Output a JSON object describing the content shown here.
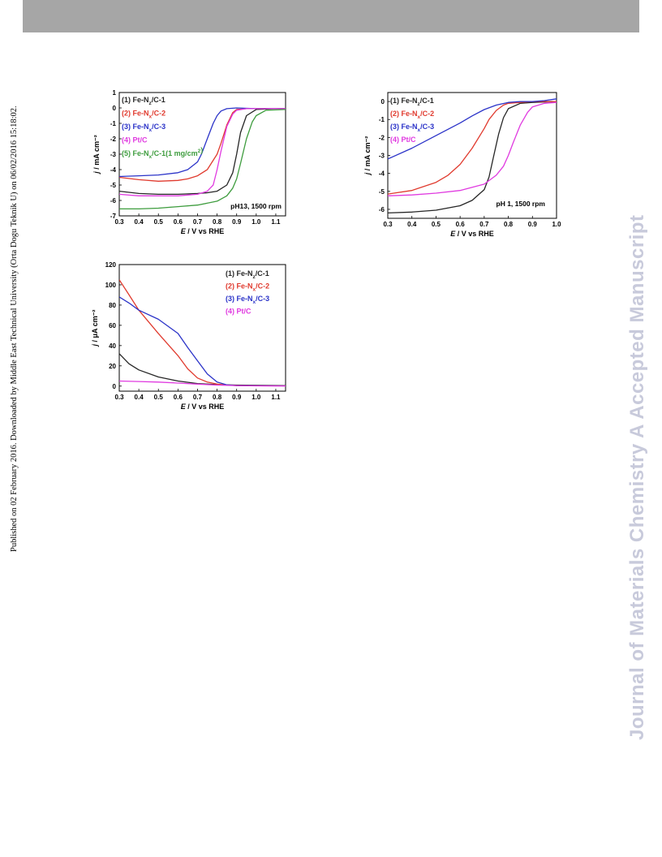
{
  "page": {
    "side_note": "Published on 02 February 2016. Downloaded by Middle East Technical University (Orta Dogu Teknik U) on 06/02/2016 15:18:02.",
    "journal_mark": "Journal of Materials Chemistry A Accepted Manuscript"
  },
  "chart_data": [
    {
      "type": "line",
      "xlabel": "E / V vs RHE",
      "ylabel": "j / mA cm⁻²",
      "xlim": [
        0.3,
        1.15
      ],
      "ylim": [
        -7,
        1
      ],
      "xticks": [
        "0.3",
        "0.4",
        "0.5",
        "0.6",
        "0.7",
        "0.8",
        "0.9",
        "1.0",
        "1.1"
      ],
      "yticks": [
        "1",
        "0",
        "-1",
        "-2",
        "-3",
        "-4",
        "-5",
        "-6",
        "-7"
      ],
      "annotation": "pH13, 1500 rpm",
      "legend_position": "top-left",
      "series": [
        {
          "name": "(1) Fe-Nz/C-1",
          "color": "#262626",
          "x": [
            0.3,
            0.4,
            0.5,
            0.6,
            0.7,
            0.75,
            0.8,
            0.85,
            0.88,
            0.9,
            0.92,
            0.95,
            1.0,
            1.1,
            1.15
          ],
          "y": [
            -5.4,
            -5.55,
            -5.6,
            -5.6,
            -5.55,
            -5.5,
            -5.4,
            -5.0,
            -4.2,
            -3.0,
            -1.6,
            -0.5,
            -0.1,
            -0.05,
            -0.05
          ]
        },
        {
          "name": "(2) Fe-Nx/C-2",
          "color": "#e03a2e",
          "x": [
            0.3,
            0.4,
            0.5,
            0.6,
            0.65,
            0.7,
            0.75,
            0.8,
            0.82,
            0.85,
            0.88,
            0.9,
            0.95,
            1.0,
            1.15
          ],
          "y": [
            -4.5,
            -4.65,
            -4.75,
            -4.7,
            -4.6,
            -4.4,
            -4.0,
            -3.0,
            -2.3,
            -1.1,
            -0.3,
            -0.1,
            -0.05,
            -0.05,
            -0.05
          ]
        },
        {
          "name": "(3) Fe-Nx/C-3",
          "color": "#2b33c8",
          "x": [
            0.3,
            0.4,
            0.5,
            0.6,
            0.65,
            0.7,
            0.72,
            0.75,
            0.78,
            0.8,
            0.82,
            0.85,
            0.9,
            1.0,
            1.15
          ],
          "y": [
            -4.45,
            -4.4,
            -4.35,
            -4.2,
            -4.0,
            -3.5,
            -3.0,
            -2.0,
            -1.0,
            -0.5,
            -0.2,
            -0.05,
            0.0,
            -0.05,
            -0.05
          ]
        },
        {
          "name": "(4) Pt/C",
          "color": "#e03ae0",
          "x": [
            0.3,
            0.4,
            0.5,
            0.6,
            0.7,
            0.75,
            0.78,
            0.8,
            0.82,
            0.85,
            0.88,
            0.9,
            0.95,
            1.0,
            1.15
          ],
          "y": [
            -5.6,
            -5.7,
            -5.7,
            -5.7,
            -5.6,
            -5.4,
            -5.0,
            -4.0,
            -2.8,
            -1.2,
            -0.4,
            -0.15,
            -0.05,
            -0.05,
            -0.05
          ]
        },
        {
          "name": "(5) Fe-Nx/C-1(1 mg/cm²)",
          "color": "#3d9c3d",
          "x": [
            0.3,
            0.4,
            0.5,
            0.6,
            0.7,
            0.8,
            0.85,
            0.88,
            0.9,
            0.92,
            0.95,
            0.98,
            1.0,
            1.05,
            1.15
          ],
          "y": [
            -6.55,
            -6.55,
            -6.5,
            -6.4,
            -6.3,
            -6.05,
            -5.7,
            -5.2,
            -4.6,
            -3.6,
            -2.0,
            -0.9,
            -0.5,
            -0.15,
            -0.1
          ]
        }
      ]
    },
    {
      "type": "line",
      "xlabel": "E / V vs RHE",
      "ylabel": "j / mA cm⁻²",
      "xlim": [
        0.3,
        1.0
      ],
      "ylim": [
        -6.5,
        0.5
      ],
      "xticks": [
        "0.3",
        "0.4",
        "0.5",
        "0.6",
        "0.7",
        "0.8",
        "0.9",
        "1.0"
      ],
      "yticks": [
        "0",
        "-1",
        "-2",
        "-3",
        "-4",
        "-5",
        "-6"
      ],
      "annotation": "pH 1, 1500 rpm",
      "legend_position": "top-left",
      "series": [
        {
          "name": "(1) Fe-Nz/C-1",
          "color": "#262626",
          "x": [
            0.3,
            0.4,
            0.5,
            0.6,
            0.65,
            0.7,
            0.72,
            0.74,
            0.76,
            0.78,
            0.8,
            0.85,
            0.9,
            1.0
          ],
          "y": [
            -6.2,
            -6.15,
            -6.05,
            -5.8,
            -5.5,
            -4.9,
            -4.2,
            -3.0,
            -1.8,
            -0.9,
            -0.4,
            -0.1,
            -0.05,
            0.0
          ]
        },
        {
          "name": "(2) Fe-Nx/C-2",
          "color": "#e03a2e",
          "x": [
            0.3,
            0.4,
            0.5,
            0.55,
            0.6,
            0.65,
            0.7,
            0.72,
            0.75,
            0.78,
            0.8,
            0.85,
            0.9,
            1.0
          ],
          "y": [
            -5.15,
            -4.95,
            -4.5,
            -4.1,
            -3.5,
            -2.6,
            -1.5,
            -1.0,
            -0.5,
            -0.2,
            -0.1,
            -0.05,
            0.0,
            0.0
          ]
        },
        {
          "name": "(3) Fe-Nx/C-3",
          "color": "#2b33c8",
          "x": [
            0.3,
            0.4,
            0.5,
            0.6,
            0.65,
            0.7,
            0.75,
            0.8,
            0.85,
            0.9,
            0.95,
            1.0
          ],
          "y": [
            -3.2,
            -2.6,
            -1.9,
            -1.2,
            -0.8,
            -0.45,
            -0.2,
            -0.05,
            0.0,
            0.0,
            0.05,
            0.15
          ]
        },
        {
          "name": "(4) Pt/C",
          "color": "#e03ae0",
          "x": [
            0.3,
            0.4,
            0.5,
            0.6,
            0.7,
            0.75,
            0.78,
            0.8,
            0.82,
            0.85,
            0.88,
            0.9,
            0.95,
            1.0
          ],
          "y": [
            -5.25,
            -5.2,
            -5.1,
            -4.95,
            -4.6,
            -4.1,
            -3.6,
            -3.0,
            -2.3,
            -1.3,
            -0.6,
            -0.3,
            -0.1,
            -0.05
          ]
        }
      ]
    },
    {
      "type": "line",
      "xlabel": "E / V vs RHE",
      "ylabel": "j / μA cm⁻²",
      "xlim": [
        0.3,
        1.15
      ],
      "ylim": [
        -5,
        120
      ],
      "xticks": [
        "0.3",
        "0.4",
        "0.5",
        "0.6",
        "0.7",
        "0.8",
        "0.9",
        "1.0",
        "1.1"
      ],
      "yticks": [
        "120",
        "100",
        "80",
        "60",
        "40",
        "20",
        "0"
      ],
      "legend_position": "top-right",
      "series": [
        {
          "name": "(1) Fe-Nz/C-1",
          "color": "#262626",
          "x": [
            0.3,
            0.35,
            0.4,
            0.5,
            0.6,
            0.7,
            0.8,
            0.9,
            1.0,
            1.15
          ],
          "y": [
            32,
            22,
            16,
            9,
            5,
            2.5,
            1.5,
            1,
            0.8,
            0.5
          ]
        },
        {
          "name": "(2) Fe-Nx/C-2",
          "color": "#e03a2e",
          "x": [
            0.3,
            0.35,
            0.4,
            0.5,
            0.6,
            0.65,
            0.7,
            0.75,
            0.8,
            0.85,
            0.9,
            1.0,
            1.15
          ],
          "y": [
            105,
            90,
            75,
            52,
            30,
            17,
            8,
            4,
            2,
            1,
            0.5,
            0.3,
            0.2
          ]
        },
        {
          "name": "(3) Fe-Nx/C-3",
          "color": "#2b33c8",
          "x": [
            0.3,
            0.35,
            0.4,
            0.5,
            0.6,
            0.65,
            0.7,
            0.75,
            0.8,
            0.85,
            0.9,
            1.0,
            1.15
          ],
          "y": [
            88,
            82,
            75,
            66,
            52,
            38,
            25,
            12,
            4,
            1.2,
            0.5,
            0.3,
            0.2
          ]
        },
        {
          "name": "(4) Pt/C",
          "color": "#e03ae0",
          "x": [
            0.3,
            0.4,
            0.5,
            0.6,
            0.7,
            0.8,
            0.9,
            1.0,
            1.15
          ],
          "y": [
            5,
            4.5,
            4,
            3,
            2,
            1,
            0.5,
            0.2,
            0.1
          ]
        }
      ]
    }
  ]
}
